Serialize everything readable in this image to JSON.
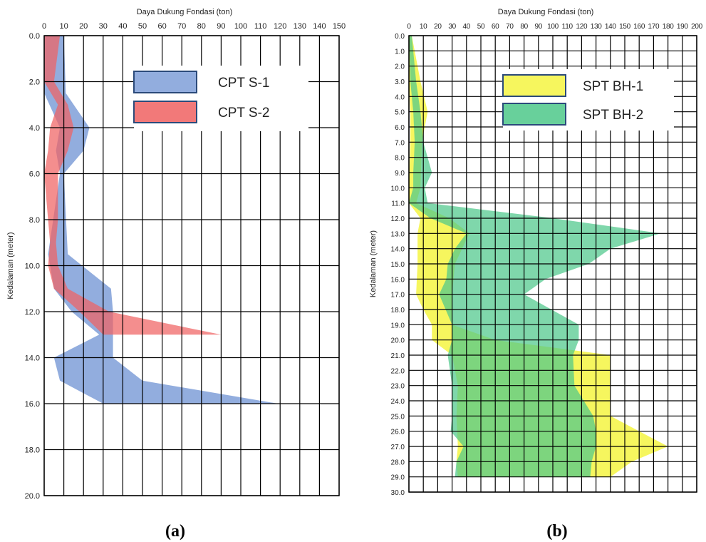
{
  "charts": [
    {
      "caption": "(a)",
      "chart_data": {
        "type": "area",
        "orientation": "depth-profile",
        "title": "Daya Dukung Fondasi (ton)",
        "xlabel": "Daya Dukung Fondasi (ton)",
        "ylabel": "Kedalaman (meter)",
        "xlim": [
          0,
          150
        ],
        "ylim": [
          0,
          20
        ],
        "y_inverted": true,
        "x_ticks": [
          "0",
          "10",
          "20",
          "30",
          "40",
          "50",
          "60",
          "70",
          "80",
          "90",
          "100",
          "110",
          "120",
          "130",
          "140",
          "150"
        ],
        "y_ticks": [
          "0.0",
          "2.0",
          "4.0",
          "6.0",
          "8.0",
          "10.0",
          "12.0",
          "14.0",
          "16.0",
          "18.0",
          "20.0"
        ],
        "legend_position": "top-right",
        "series": [
          {
            "name": "CPT S-1",
            "color": "#7f9fd8",
            "depth": [
              0,
              2.5,
              4,
              5,
              6,
              9.5,
              11,
              12,
              13,
              14,
              15,
              16
            ],
            "lower": [
              0,
              0,
              8,
              6,
              8,
              2,
              5,
              14,
              28,
              5,
              8,
              30
            ],
            "upper": [
              10,
              11,
              23,
              20,
              10,
              12,
              34,
              35,
              35,
              35,
              50,
              119
            ]
          },
          {
            "name": "CPT S-2",
            "color": "#f06262",
            "depth": [
              0,
              2,
              3,
              4,
              5,
              6,
              8,
              9,
              10,
              11,
              12,
              13
            ],
            "lower": [
              0,
              0,
              7,
              3,
              2,
              0,
              2,
              3,
              2,
              5,
              18,
              30
            ],
            "upper": [
              8,
              5,
              12,
              15,
              12,
              7,
              7,
              6,
              7,
              12,
              33,
              90
            ]
          }
        ]
      }
    },
    {
      "caption": "(b)",
      "chart_data": {
        "type": "area",
        "orientation": "depth-profile",
        "title": "Daya Dukung Fondasi (ton)",
        "xlabel": "Daya Dukung Fondasi (ton)",
        "ylabel": "Kedalaman (meter)",
        "xlim": [
          0,
          200
        ],
        "ylim": [
          0,
          30
        ],
        "y_inverted": true,
        "x_ticks": [
          "0",
          "10",
          "20",
          "30",
          "40",
          "50",
          "60",
          "70",
          "80",
          "90",
          "100",
          "110",
          "120",
          "130",
          "140",
          "150",
          "160",
          "170",
          "180",
          "190",
          "200"
        ],
        "y_ticks": [
          "0.0",
          "1.0",
          "2.0",
          "3.0",
          "4.0",
          "5.0",
          "6.0",
          "7.0",
          "8.0",
          "9.0",
          "10.0",
          "11.0",
          "12.0",
          "13.0",
          "14.0",
          "15.0",
          "16.0",
          "17.0",
          "18.0",
          "19.0",
          "20.0",
          "21.0",
          "22.0",
          "23.0",
          "24.0",
          "25.0",
          "26.0",
          "27.0",
          "28.0",
          "29.0",
          "30.0"
        ],
        "legend_position": "top-right",
        "series": [
          {
            "name": "SPT BH-1",
            "color": "#f5f542",
            "depth": [
              0,
              3,
              5,
              7,
              10,
              11,
              12,
              13,
              15,
              17,
              18,
              19,
              20,
              21,
              23,
              25,
              27,
              28,
              29
            ],
            "lower": [
              0,
              0,
              1,
              1,
              0,
              0,
              8,
              6,
              6,
              5,
              10,
              16,
              16,
              30,
              34,
              33,
              34,
              33,
              34
            ],
            "upper": [
              2,
              8,
              13,
              9,
              8,
              5,
              28,
              42,
              32,
              30,
              30,
              30,
              60,
              140,
              140,
              140,
              180,
              155,
              140
            ]
          },
          {
            "name": "SPT BH-2",
            "color": "#4dc88a",
            "depth": [
              0,
              3,
              5,
              7,
              9,
              10,
              11,
              12,
              13,
              14,
              15,
              16,
              17,
              19,
              20,
              21,
              23,
              25,
              26,
              27,
              28,
              29
            ],
            "lower": [
              0,
              1,
              3,
              4,
              3,
              3,
              0,
              15,
              40,
              32,
              27,
              26,
              21,
              30,
              30,
              27,
              30,
              30,
              29,
              38,
              33,
              32
            ],
            "upper": [
              2,
              5,
              8,
              10,
              16,
              11,
              13,
              100,
              175,
              140,
              125,
              95,
              80,
              118,
              118,
              114,
              115,
              128,
              130,
              130,
              127,
              126
            ]
          }
        ]
      }
    }
  ]
}
